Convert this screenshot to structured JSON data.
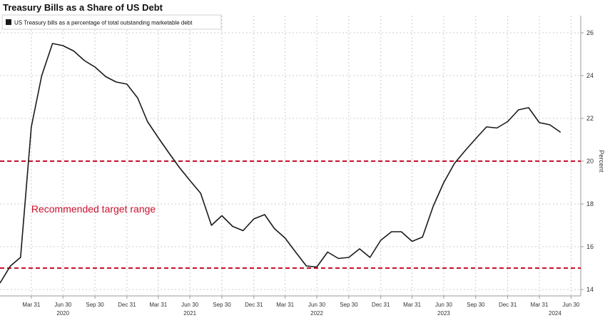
{
  "chart_data": {
    "type": "line",
    "title": "Treasury Bills as a Share of US Debt",
    "ylabel": "Percent",
    "ylim": [
      13.7,
      26.8
    ],
    "yticks": [
      14,
      16,
      18,
      20,
      22,
      24,
      26
    ],
    "x_tick_labels": [
      "Mar 31",
      "Jun 30",
      "Sep 30",
      "Dec 31",
      "Mar 31",
      "Jun 30",
      "Sep 30",
      "Dec 31",
      "Mar 31",
      "Jun 30",
      "Sep 30",
      "Dec 31",
      "Mar 31",
      "Jun 30",
      "Sep 30",
      "Dec 31",
      "Mar 31",
      "Jun 30"
    ],
    "x_tick_dates": [
      "2020-03-31",
      "2020-06-30",
      "2020-09-30",
      "2020-12-31",
      "2021-03-31",
      "2021-06-30",
      "2021-09-30",
      "2021-12-31",
      "2022-03-31",
      "2022-06-30",
      "2022-09-30",
      "2022-12-31",
      "2023-03-31",
      "2023-06-30",
      "2023-09-30",
      "2023-12-31",
      "2024-03-31",
      "2024-06-30"
    ],
    "year_labels": [
      {
        "label": "2020",
        "date": "2020-06-30"
      },
      {
        "label": "2021",
        "date": "2021-06-30"
      },
      {
        "label": "2022",
        "date": "2022-06-30"
      },
      {
        "label": "2023",
        "date": "2023-06-30"
      },
      {
        "label": "2024",
        "date": "2024-05-15"
      }
    ],
    "xlim": [
      "2020-01-01",
      "2024-07-28"
    ],
    "grid": true,
    "legend_position": "top-left",
    "series": [
      {
        "name": "US Treasury bills as a percentage of total outstanding marketable debt",
        "color": "#1a1a1a",
        "points": [
          [
            "2020-01-01",
            14.3
          ],
          [
            "2020-01-31",
            15.1
          ],
          [
            "2020-02-29",
            15.5
          ],
          [
            "2020-03-31",
            21.6
          ],
          [
            "2020-04-30",
            24.0
          ],
          [
            "2020-05-31",
            25.5
          ],
          [
            "2020-06-30",
            25.4
          ],
          [
            "2020-07-31",
            25.15
          ],
          [
            "2020-08-31",
            24.7
          ],
          [
            "2020-09-30",
            24.4
          ],
          [
            "2020-10-31",
            23.95
          ],
          [
            "2020-11-30",
            23.7
          ],
          [
            "2020-12-31",
            23.6
          ],
          [
            "2021-01-31",
            22.95
          ],
          [
            "2021-02-28",
            21.85
          ],
          [
            "2021-03-31",
            21.1
          ],
          [
            "2021-04-30",
            20.4
          ],
          [
            "2021-05-31",
            19.7
          ],
          [
            "2021-06-30",
            19.1
          ],
          [
            "2021-07-31",
            18.5
          ],
          [
            "2021-08-31",
            17.0
          ],
          [
            "2021-09-30",
            17.45
          ],
          [
            "2021-10-31",
            16.95
          ],
          [
            "2021-11-30",
            16.75
          ],
          [
            "2021-12-31",
            17.3
          ],
          [
            "2022-01-31",
            17.5
          ],
          [
            "2022-02-28",
            16.85
          ],
          [
            "2022-03-31",
            16.4
          ],
          [
            "2022-04-30",
            15.75
          ],
          [
            "2022-05-31",
            15.1
          ],
          [
            "2022-06-30",
            15.05
          ],
          [
            "2022-07-31",
            15.75
          ],
          [
            "2022-08-31",
            15.45
          ],
          [
            "2022-09-30",
            15.5
          ],
          [
            "2022-10-31",
            15.9
          ],
          [
            "2022-11-30",
            15.5
          ],
          [
            "2022-12-31",
            16.3
          ],
          [
            "2023-01-31",
            16.7
          ],
          [
            "2023-02-28",
            16.7
          ],
          [
            "2023-03-31",
            16.25
          ],
          [
            "2023-04-30",
            16.45
          ],
          [
            "2023-05-31",
            17.9
          ],
          [
            "2023-06-30",
            19.0
          ],
          [
            "2023-07-31",
            19.9
          ],
          [
            "2023-08-31",
            20.5
          ],
          [
            "2023-09-30",
            21.05
          ],
          [
            "2023-10-31",
            21.6
          ],
          [
            "2023-11-30",
            21.55
          ],
          [
            "2023-12-31",
            21.85
          ],
          [
            "2024-01-31",
            22.4
          ],
          [
            "2024-02-29",
            22.5
          ],
          [
            "2024-03-31",
            21.8
          ],
          [
            "2024-04-30",
            21.7
          ],
          [
            "2024-05-31",
            21.35
          ]
        ]
      }
    ],
    "reference_lines": [
      {
        "y": 20,
        "color": "#c8102e",
        "style": "dashed"
      },
      {
        "y": 15,
        "color": "#c8102e",
        "style": "dashed"
      }
    ],
    "annotations": [
      {
        "text": "Recommended target range",
        "date": "2020-03-31",
        "y": 17.6,
        "color": "#c8102e"
      }
    ]
  }
}
